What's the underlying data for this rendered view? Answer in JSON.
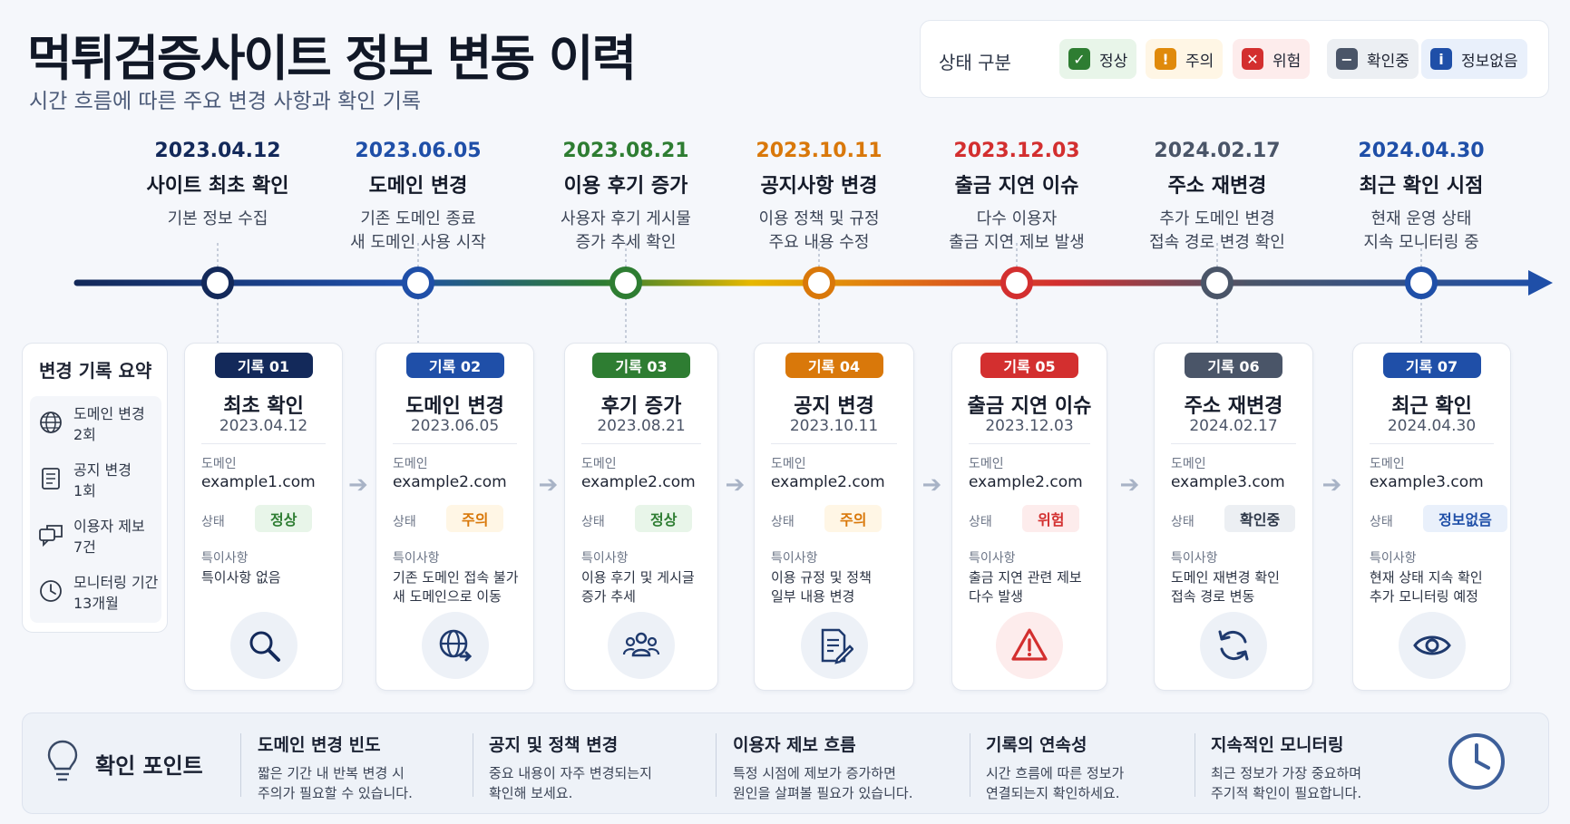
{
  "header": {
    "title": "먹튀검증사이트 정보 변동 이력",
    "subtitle": "시간 흐름에 따른 주요 변경 사항과 확인 기록"
  },
  "legend": {
    "title": "상태 구분",
    "items": [
      {
        "label": "정상",
        "icon": "check-icon",
        "glyph": "✓",
        "color": "#2e7d32",
        "bg": "#e8f5e9"
      },
      {
        "label": "주의",
        "icon": "exclamation-icon",
        "glyph": "!",
        "color": "#e08a0b",
        "bg": "#fff6e5"
      },
      {
        "label": "위험",
        "icon": "x-icon",
        "glyph": "✕",
        "color": "#d32f2f",
        "bg": "#fdecec"
      },
      {
        "label": "확인중",
        "icon": "minus-icon",
        "glyph": "−",
        "color": "#4a5568",
        "bg": "#eceff3"
      },
      {
        "label": "정보없음",
        "icon": "info-icon",
        "glyph": "i",
        "color": "#1f4fa8",
        "bg": "#e9f0fb"
      }
    ]
  },
  "timeline": [
    {
      "date": "2023.04.12",
      "title": "사이트 최초 확인",
      "desc": [
        "기본 정보 수집"
      ],
      "color": "#13295a"
    },
    {
      "date": "2023.06.05",
      "title": "도메인 변경",
      "desc": [
        "기존 도메인 종료",
        "새 도메인 사용 시작"
      ],
      "color": "#1f4fa8"
    },
    {
      "date": "2023.08.21",
      "title": "이용 후기 증가",
      "desc": [
        "사용자 후기 게시물",
        "증가 추세 확인"
      ],
      "color": "#2e7d32"
    },
    {
      "date": "2023.10.11",
      "title": "공지사항 변경",
      "desc": [
        "이용 정책 및 규정",
        "주요 내용 수정"
      ],
      "color": "#d9780a"
    },
    {
      "date": "2023.12.03",
      "title": "출금 지연 이슈",
      "desc": [
        "다수 이용자",
        "출금 지연 제보 발생"
      ],
      "color": "#d32f2f"
    },
    {
      "date": "2024.02.17",
      "title": "주소 재변경",
      "desc": [
        "추가 도메인 변경",
        "접속 경로 변경 확인"
      ],
      "color": "#4a5568"
    },
    {
      "date": "2024.04.30",
      "title": "최근 확인 시점",
      "desc": [
        "현재 운영 상태",
        "지속 모니터링 중"
      ],
      "color": "#1f4fa8"
    }
  ],
  "summary": {
    "title": "변경 기록 요약",
    "items": [
      {
        "icon": "globe-icon",
        "label": "도메인 변경",
        "value": "2회"
      },
      {
        "icon": "document-icon",
        "label": "공지 변경",
        "value": "1회"
      },
      {
        "icon": "chat-icon",
        "label": "이용자 제보",
        "value": "7건"
      },
      {
        "icon": "clock-icon",
        "label": "모니터링 기간",
        "value": "13개월"
      }
    ]
  },
  "card_labels": {
    "domain": "도메인",
    "status": "상태",
    "note": "특이사항"
  },
  "cards": [
    {
      "badge": "기록 01",
      "title": "최초 확인",
      "date": "2023.04.12",
      "domain": "example1.com",
      "status": "정상",
      "status_color": "#2e7d32",
      "status_bg": "#e8f5e9",
      "note": [
        "특이사항 없음"
      ],
      "icon": "search-icon",
      "color": "#13295a"
    },
    {
      "badge": "기록 02",
      "title": "도메인 변경",
      "date": "2023.06.05",
      "domain": "example2.com",
      "status": "주의",
      "status_color": "#d9780a",
      "status_bg": "#fff6e5",
      "note": [
        "기존 도메인 접속 불가",
        "새 도메인으로 이동"
      ],
      "icon": "globe-arrow-icon",
      "color": "#1f4fa8"
    },
    {
      "badge": "기록 03",
      "title": "후기 증가",
      "date": "2023.08.21",
      "domain": "example2.com",
      "status": "정상",
      "status_color": "#2e7d32",
      "status_bg": "#e8f5e9",
      "note": [
        "이용 후기 및 게시글",
        "증가 추세"
      ],
      "icon": "users-icon",
      "color": "#2e7d32"
    },
    {
      "badge": "기록 04",
      "title": "공지 변경",
      "date": "2023.10.11",
      "domain": "example2.com",
      "status": "주의",
      "status_color": "#d9780a",
      "status_bg": "#fff6e5",
      "note": [
        "이용 규정 및 정책",
        "일부 내용 변경"
      ],
      "icon": "document-edit-icon",
      "color": "#d9780a"
    },
    {
      "badge": "기록 05",
      "title": "출금 지연 이슈",
      "date": "2023.12.03",
      "domain": "example2.com",
      "status": "위험",
      "status_color": "#d32f2f",
      "status_bg": "#fdecec",
      "note": [
        "출금 지연 관련 제보",
        "다수 발생"
      ],
      "icon": "warning-icon",
      "color": "#d32f2f"
    },
    {
      "badge": "기록 06",
      "title": "주소 재변경",
      "date": "2024.02.17",
      "domain": "example3.com",
      "status": "확인중",
      "status_color": "#2d3748",
      "status_bg": "#eceff3",
      "note": [
        "도메인 재변경 확인",
        "접속 경로 변동"
      ],
      "icon": "refresh-icon",
      "color": "#4a5568"
    },
    {
      "badge": "기록 07",
      "title": "최근 확인",
      "date": "2024.04.30",
      "domain": "example3.com",
      "status": "정보없음",
      "status_color": "#1f4fa8",
      "status_bg": "#e9f0fb",
      "note": [
        "현재 상태 지속 확인",
        "추가 모니터링 예정"
      ],
      "icon": "eye-icon",
      "color": "#1f4fa8"
    }
  ],
  "footer": {
    "title": "확인 포인트",
    "points": [
      {
        "title": "도메인 변경 빈도",
        "desc": [
          "짧은 기간 내 반복 변경 시",
          "주의가 필요할 수 있습니다."
        ]
      },
      {
        "title": "공지 및 정책 변경",
        "desc": [
          "중요 내용이 자주 변경되는지",
          "확인해 보세요."
        ]
      },
      {
        "title": "이용자 제보 흐름",
        "desc": [
          "특정 시점에 제보가 증가하면",
          "원인을 살펴볼 필요가 있습니다."
        ]
      },
      {
        "title": "기록의 연속성",
        "desc": [
          "시간 흐름에 따른 정보가",
          "연결되는지 확인하세요."
        ]
      },
      {
        "title": "지속적인 모니터링",
        "desc": [
          "최근 정보가 가장 중요하며",
          "주기적 확인이 필요합니다."
        ]
      }
    ]
  }
}
